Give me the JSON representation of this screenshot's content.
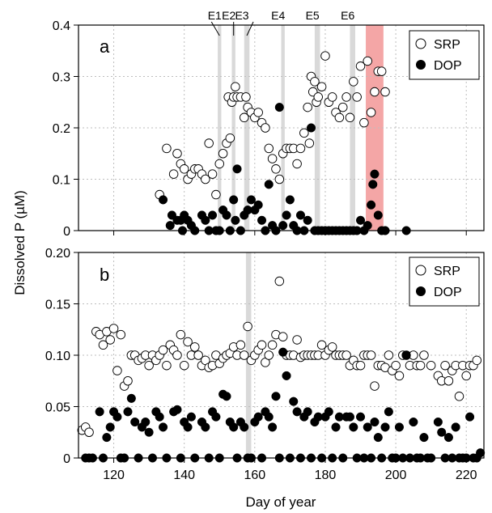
{
  "chart_data": {
    "xlabel": "Day of year",
    "ylabel": "Dissolved P (µM)",
    "x_ticks": [
      "120",
      "140",
      "160",
      "180",
      "200",
      "220"
    ],
    "xlim": [
      110,
      225
    ],
    "grid": true,
    "panels": [
      {
        "label": "a",
        "type": "scatter",
        "ylim": [
          0,
          0.4
        ],
        "y_ticks": [
          "0",
          "0.1",
          "0.2",
          "0.3",
          "0.4"
        ],
        "legend": {
          "position": "top-right",
          "entries": [
            "SRP",
            "DOP"
          ]
        },
        "event_bands": [
          {
            "label": "E1",
            "x": [
              149.5,
              150.5
            ],
            "color": "#d9d9d9"
          },
          {
            "label": "E2",
            "x": [
              153.5,
              154.5
            ],
            "color": "#d9d9d9"
          },
          {
            "label": "E3",
            "x": [
              157.0,
              158.5
            ],
            "color": "#d9d9d9"
          },
          {
            "label": "E4",
            "x": [
              167.5,
              168.5
            ],
            "color": "#d9d9d9"
          },
          {
            "label": "E5",
            "x": [
              177.0,
              178.5
            ],
            "color": "#d9d9d9"
          },
          {
            "label": "E6",
            "x": [
              187.0,
              188.5
            ],
            "color": "#d9d9d9"
          },
          {
            "label": "",
            "x": [
              191.5,
              196.5
            ],
            "color": "#f4a6a6"
          }
        ],
        "series": [
          {
            "name": "SRP",
            "marker": "open-circle",
            "x": [
              133,
              135,
              137,
              138,
              139,
              140,
              141,
              142,
              143,
              144,
              145,
              146,
              147,
              148,
              149,
              150,
              151,
              152,
              152.5,
              153,
              153.5,
              154,
              154.5,
              155,
              156,
              157,
              157.5,
              158,
              159,
              160,
              161,
              162,
              163,
              164,
              165,
              166,
              167,
              168,
              169,
              170,
              171,
              172,
              173,
              174,
              175,
              175.5,
              176,
              176.5,
              177,
              177.5,
              178,
              179,
              180,
              181,
              182,
              183,
              184,
              185,
              186,
              187,
              188,
              189,
              190,
              191,
              192,
              193,
              194,
              195,
              196,
              197
            ],
            "y": [
              0.07,
              0.16,
              0.11,
              0.15,
              0.13,
              0.12,
              0.1,
              0.11,
              0.12,
              0.12,
              0.11,
              0.1,
              0.17,
              0.11,
              0.07,
              0.13,
              0.15,
              0.17,
              0.26,
              0.18,
              0.25,
              0.26,
              0.28,
              0.26,
              0.26,
              0.22,
              0.26,
              0.24,
              0.23,
              0.22,
              0.23,
              0.21,
              0.2,
              0.16,
              0.14,
              0.12,
              0.1,
              0.15,
              0.16,
              0.16,
              0.16,
              0.13,
              0.16,
              0.19,
              0.24,
              0.17,
              0.3,
              0.27,
              0.29,
              0.25,
              0.26,
              0.28,
              0.34,
              0.25,
              0.26,
              0.23,
              0.22,
              0.24,
              0.26,
              0.22,
              0.29,
              0.26,
              0.32,
              0.21,
              0.33,
              0.23,
              0.27,
              0.31,
              0.31,
              0.27
            ]
          },
          {
            "name": "DOP",
            "marker": "filled-circle",
            "x": [
              134,
              136,
              136.5,
              138,
              139,
              139.5,
              140,
              141,
              142,
              143,
              145,
              146,
              147,
              148,
              149,
              150,
              151,
              152,
              153,
              154,
              154.5,
              155,
              156,
              157,
              158,
              159,
              160,
              161,
              162,
              163,
              164,
              165,
              166,
              167,
              168,
              169,
              170,
              171,
              172,
              173,
              174,
              175,
              176,
              177,
              178,
              179,
              180,
              181,
              182,
              183,
              184,
              185,
              186,
              187,
              188,
              189,
              190,
              191,
              192,
              193,
              193.5,
              194,
              195,
              196,
              197,
              203
            ],
            "y": [
              0.06,
              0.01,
              0.03,
              0.02,
              0.02,
              0.0,
              0.03,
              0.02,
              0.01,
              0.0,
              0.03,
              0.02,
              0.0,
              0.03,
              0.0,
              0.0,
              0.04,
              0.03,
              0.0,
              0.06,
              0.02,
              0.12,
              0.0,
              0.03,
              0.04,
              0.06,
              0.04,
              0.05,
              0.02,
              0.0,
              0.09,
              0.01,
              0.0,
              0.24,
              0.01,
              0.03,
              0.06,
              0.01,
              0.0,
              0.03,
              0.0,
              0.02,
              0.2,
              0.0,
              0.0,
              0.0,
              0.0,
              0.0,
              0.0,
              0.0,
              0.0,
              0.0,
              0.0,
              0.0,
              0.0,
              0.0,
              0.02,
              0.0,
              0.01,
              0.05,
              0.09,
              0.11,
              0.03,
              0.0,
              0.0,
              0.0
            ]
          }
        ]
      },
      {
        "label": "b",
        "type": "scatter",
        "ylim": [
          0,
          0.2
        ],
        "y_ticks": [
          "0",
          "0.05",
          "0.10",
          "0.15",
          "0.20"
        ],
        "legend": {
          "position": "top-right",
          "entries": [
            "SRP",
            "DOP"
          ]
        },
        "event_bands": [
          {
            "label": "",
            "x": [
              157.5,
              159.0
            ],
            "color": "#d9d9d9"
          }
        ],
        "series": [
          {
            "name": "SRP",
            "marker": "open-circle",
            "x": [
              111,
              112,
              113,
              115,
              116,
              117,
              118,
              119,
              120,
              121,
              122,
              123,
              124,
              125,
              126,
              127,
              128,
              129,
              130,
              131,
              132,
              133,
              134,
              135,
              136,
              137,
              138,
              139,
              140,
              141,
              142,
              143,
              144,
              145,
              146,
              147,
              148,
              149,
              150,
              151,
              152,
              153,
              154,
              155,
              156,
              157,
              158,
              159,
              160,
              161,
              162,
              163,
              164,
              165,
              166,
              167,
              168,
              169,
              170,
              171,
              172,
              173,
              174,
              175,
              176,
              177,
              178,
              179,
              180,
              181,
              182,
              183,
              184,
              185,
              186,
              187,
              188,
              189,
              190,
              191,
              192,
              193,
              194,
              195,
              196,
              197,
              198,
              199,
              200,
              201,
              202,
              203,
              204,
              205,
              206,
              207,
              208,
              210,
              212,
              213,
              214,
              215,
              216,
              217,
              218,
              219,
              220,
              221,
              222,
              223
            ],
            "y": [
              0.027,
              0.03,
              0.025,
              0.123,
              0.12,
              0.11,
              0.123,
              0.115,
              0.126,
              0.085,
              0.12,
              0.07,
              0.075,
              0.1,
              0.1,
              0.095,
              0.097,
              0.1,
              0.09,
              0.1,
              0.095,
              0.1,
              0.105,
              0.09,
              0.11,
              0.105,
              0.1,
              0.12,
              0.09,
              0.113,
              0.1,
              0.108,
              0.1,
              0.09,
              0.095,
              0.088,
              0.09,
              0.1,
              0.092,
              0.097,
              0.1,
              0.102,
              0.108,
              0.1,
              0.11,
              0.1,
              0.128,
              0.095,
              0.1,
              0.105,
              0.11,
              0.093,
              0.1,
              0.11,
              0.12,
              0.172,
              0.118,
              0.1,
              0.1,
              0.1,
              0.115,
              0.098,
              0.1,
              0.1,
              0.1,
              0.1,
              0.1,
              0.11,
              0.1,
              0.105,
              0.108,
              0.1,
              0.1,
              0.1,
              0.1,
              0.09,
              0.095,
              0.09,
              0.09,
              0.1,
              0.1,
              0.1,
              0.07,
              0.09,
              0.09,
              0.088,
              0.1,
              0.085,
              0.09,
              0.08,
              0.1,
              0.1,
              0.09,
              0.1,
              0.09,
              0.09,
              0.1,
              0.09,
              0.08,
              0.075,
              0.09,
              0.075,
              0.085,
              0.09,
              0.06,
              0.09,
              0.08,
              0.09,
              0.09,
              0.095
            ]
          },
          {
            "name": "DOP",
            "marker": "filled-circle",
            "x": [
              112,
              113,
              114,
              116,
              117,
              118,
              119,
              120,
              121,
              122,
              123,
              124,
              125,
              126,
              127,
              128,
              129,
              130,
              131,
              132,
              133,
              134,
              135,
              137,
              138,
              139,
              140,
              141,
              142,
              143,
              145,
              146,
              147,
              148,
              149,
              150,
              151,
              152,
              153,
              154,
              155,
              156,
              157,
              158,
              159,
              160,
              161,
              162,
              163,
              164,
              165,
              166,
              167,
              168,
              169,
              170,
              171,
              172,
              173,
              174,
              175,
              176,
              177,
              178,
              179,
              180,
              181,
              182,
              183,
              184,
              185,
              186,
              187,
              188,
              189,
              190,
              191,
              192,
              193,
              194,
              195,
              196,
              197,
              198,
              199,
              200,
              201,
              202,
              203,
              204,
              205,
              206,
              207,
              208,
              209,
              210,
              212,
              213,
              214,
              215,
              216,
              217,
              218,
              219,
              220,
              221,
              222,
              223,
              224
            ],
            "y": [
              0.0,
              0.0,
              0.0,
              0.045,
              0.0,
              0.02,
              0.03,
              0.045,
              0.04,
              0.0,
              0.0,
              0.045,
              0.058,
              0.035,
              0.0,
              0.03,
              0.035,
              0.025,
              0.0,
              0.045,
              0.04,
              0.03,
              0.0,
              0.045,
              0.047,
              0.0,
              0.035,
              0.03,
              0.04,
              0.0,
              0.035,
              0.03,
              0.0,
              0.045,
              0.04,
              0.0,
              0.062,
              0.06,
              0.035,
              0.03,
              0.0,
              0.035,
              0.03,
              0.0,
              0.0,
              0.035,
              0.04,
              0.0,
              0.045,
              0.04,
              0.03,
              0.06,
              0.0,
              0.103,
              0.08,
              0.0,
              0.055,
              0.045,
              0.0,
              0.04,
              0.045,
              0.0,
              0.035,
              0.04,
              0.0,
              0.04,
              0.045,
              0.0,
              0.03,
              0.04,
              0.0,
              0.04,
              0.04,
              0.03,
              0.0,
              0.04,
              0.0,
              0.03,
              0.0,
              0.035,
              0.02,
              0.0,
              0.03,
              0.045,
              0.0,
              0.0,
              0.03,
              0.0,
              0.1,
              0.0,
              0.035,
              0.0,
              0.0,
              0.02,
              0.0,
              0.0,
              0.035,
              0.025,
              0.0,
              0.02,
              0.0,
              0.03,
              0.0,
              0.0,
              0.0,
              0.04,
              0.0,
              0.0,
              0.005
            ]
          }
        ]
      }
    ]
  }
}
